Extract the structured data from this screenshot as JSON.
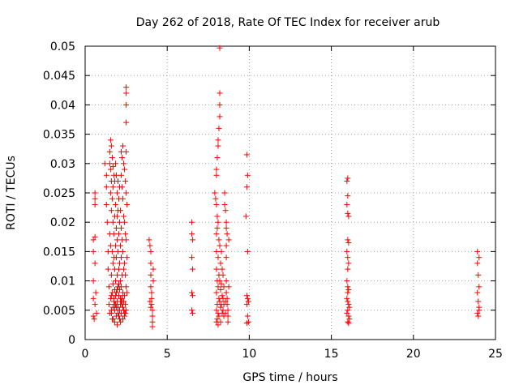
{
  "chart_data": {
    "type": "scatter",
    "title": "Day 262 of 2018, Rate Of TEC Index for receiver arub",
    "xlabel": "GPS time / hours",
    "ylabel": "ROTI / TECUs",
    "xlim": [
      0,
      25
    ],
    "ylim": [
      0,
      0.05
    ],
    "x_ticks": [
      0,
      5,
      10,
      15,
      20,
      25
    ],
    "x_tick_labels": [
      "0",
      "5",
      "10",
      "15",
      "20",
      "25"
    ],
    "y_ticks": [
      0,
      0.005,
      0.01,
      0.015,
      0.02,
      0.025,
      0.03,
      0.035,
      0.04,
      0.045,
      0.05
    ],
    "y_tick_labels": [
      "0",
      "0.005",
      "0.01",
      "0.015",
      "0.02",
      "0.025",
      "0.03",
      "0.035",
      "0.04",
      "0.045",
      "0.05"
    ],
    "grid": true,
    "marker": "+",
    "color": "#ff0000",
    "series": [
      {
        "name": "ROTI",
        "points": [
          [
            0.5,
            0.017
          ],
          [
            0.5,
            0.015
          ],
          [
            0.5,
            0.01
          ],
          [
            0.5,
            0.007
          ],
          [
            0.5,
            0.004
          ],
          [
            0.55,
            0.0035
          ],
          [
            0.6,
            0.006
          ],
          [
            0.6,
            0.025
          ],
          [
            0.6,
            0.024
          ],
          [
            0.6,
            0.023
          ],
          [
            0.6,
            0.0175
          ],
          [
            0.6,
            0.013
          ],
          [
            0.65,
            0.008
          ],
          [
            0.7,
            0.0045
          ],
          [
            1.2,
            0.03
          ],
          [
            1.3,
            0.028
          ],
          [
            1.3,
            0.026
          ],
          [
            1.3,
            0.023
          ],
          [
            1.35,
            0.02
          ],
          [
            1.4,
            0.015
          ],
          [
            1.4,
            0.012
          ],
          [
            1.45,
            0.009
          ],
          [
            1.45,
            0.006
          ],
          [
            1.5,
            0.032
          ],
          [
            1.5,
            0.03
          ],
          [
            1.5,
            0.018
          ],
          [
            1.55,
            0.034
          ],
          [
            1.55,
            0.029
          ],
          [
            1.55,
            0.025
          ],
          [
            1.55,
            0.016
          ],
          [
            1.6,
            0.033
          ],
          [
            1.6,
            0.027
          ],
          [
            1.6,
            0.022
          ],
          [
            1.6,
            0.011
          ],
          [
            1.6,
            0.0075
          ],
          [
            1.6,
            0.0045
          ],
          [
            1.65,
            0.031
          ],
          [
            1.65,
            0.024
          ],
          [
            1.65,
            0.015
          ],
          [
            1.65,
            0.0035
          ],
          [
            1.7,
            0.0295
          ],
          [
            1.7,
            0.026
          ],
          [
            1.7,
            0.02
          ],
          [
            1.7,
            0.013
          ],
          [
            1.7,
            0.0095
          ],
          [
            1.7,
            0.0055
          ],
          [
            1.75,
            0.028
          ],
          [
            1.75,
            0.018
          ],
          [
            1.75,
            0.014
          ],
          [
            1.75,
            0.007
          ],
          [
            1.8,
            0.027
          ],
          [
            1.8,
            0.021
          ],
          [
            1.8,
            0.012
          ],
          [
            1.8,
            0.0085
          ],
          [
            1.8,
            0.005
          ],
          [
            1.8,
            0.003
          ],
          [
            1.85,
            0.03
          ],
          [
            1.85,
            0.023
          ],
          [
            1.85,
            0.016
          ],
          [
            1.85,
            0.01
          ],
          [
            1.85,
            0.006
          ],
          [
            1.9,
            0.028
          ],
          [
            1.9,
            0.019
          ],
          [
            1.9,
            0.014
          ],
          [
            1.9,
            0.008
          ],
          [
            1.9,
            0.004
          ],
          [
            1.95,
            0.025
          ],
          [
            1.95,
            0.021
          ],
          [
            1.95,
            0.017
          ],
          [
            1.95,
            0.011
          ],
          [
            1.95,
            0.0065
          ],
          [
            1.95,
            0.0025
          ],
          [
            2.0,
            0.027
          ],
          [
            2.0,
            0.022
          ],
          [
            2.0,
            0.015
          ],
          [
            2.0,
            0.009
          ],
          [
            2.0,
            0.0055
          ],
          [
            2.05,
            0.024
          ],
          [
            2.05,
            0.018
          ],
          [
            2.05,
            0.012
          ],
          [
            2.05,
            0.0075
          ],
          [
            2.05,
            0.004
          ],
          [
            2.1,
            0.026
          ],
          [
            2.1,
            0.02
          ],
          [
            2.1,
            0.013
          ],
          [
            2.1,
            0.0085
          ],
          [
            2.1,
            0.005
          ],
          [
            2.15,
            0.022
          ],
          [
            2.15,
            0.016
          ],
          [
            2.15,
            0.01
          ],
          [
            2.15,
            0.006
          ],
          [
            2.15,
            0.003
          ],
          [
            2.2,
            0.032
          ],
          [
            2.2,
            0.028
          ],
          [
            2.2,
            0.019
          ],
          [
            2.2,
            0.014
          ],
          [
            2.2,
            0.009
          ],
          [
            2.2,
            0.0045
          ],
          [
            2.25,
            0.031
          ],
          [
            2.25,
            0.026
          ],
          [
            2.25,
            0.017
          ],
          [
            2.25,
            0.011
          ],
          [
            2.25,
            0.007
          ],
          [
            2.3,
            0.033
          ],
          [
            2.3,
            0.024
          ],
          [
            2.3,
            0.015
          ],
          [
            2.3,
            0.008
          ],
          [
            2.3,
            0.0035
          ],
          [
            2.35,
            0.03
          ],
          [
            2.35,
            0.021
          ],
          [
            2.35,
            0.012
          ],
          [
            2.35,
            0.0065
          ],
          [
            2.4,
            0.029
          ],
          [
            2.4,
            0.02
          ],
          [
            2.4,
            0.013
          ],
          [
            2.4,
            0.0075
          ],
          [
            2.4,
            0.0045
          ],
          [
            2.45,
            0.027
          ],
          [
            2.45,
            0.018
          ],
          [
            2.45,
            0.011
          ],
          [
            2.45,
            0.006
          ],
          [
            2.5,
            0.043
          ],
          [
            2.5,
            0.042
          ],
          [
            2.5,
            0.04
          ],
          [
            2.5,
            0.037
          ],
          [
            2.5,
            0.032
          ],
          [
            2.5,
            0.025
          ],
          [
            2.5,
            0.017
          ],
          [
            2.5,
            0.009
          ],
          [
            2.5,
            0.005
          ],
          [
            2.55,
            0.023
          ],
          [
            2.55,
            0.014
          ],
          [
            2.55,
            0.008
          ],
          [
            1.5,
            0.0045
          ],
          [
            1.6,
            0.005
          ],
          [
            1.7,
            0.0035
          ],
          [
            1.8,
            0.006
          ],
          [
            1.9,
            0.0055
          ],
          [
            2.0,
            0.0045
          ],
          [
            2.1,
            0.0035
          ],
          [
            2.2,
            0.0065
          ],
          [
            2.3,
            0.0055
          ],
          [
            2.4,
            0.004
          ],
          [
            1.55,
            0.007
          ],
          [
            1.65,
            0.008
          ],
          [
            1.75,
            0.0065
          ],
          [
            1.85,
            0.0075
          ],
          [
            1.95,
            0.0085
          ],
          [
            2.05,
            0.0095
          ],
          [
            2.15,
            0.007
          ],
          [
            2.25,
            0.006
          ],
          [
            2.35,
            0.005
          ],
          [
            2.45,
            0.0045
          ],
          [
            3.9,
            0.017
          ],
          [
            3.95,
            0.016
          ],
          [
            4.0,
            0.015
          ],
          [
            4.0,
            0.013
          ],
          [
            4.0,
            0.011
          ],
          [
            4.0,
            0.009
          ],
          [
            4.05,
            0.008
          ],
          [
            4.05,
            0.007
          ],
          [
            4.05,
            0.006
          ],
          [
            4.1,
            0.005
          ],
          [
            4.1,
            0.004
          ],
          [
            4.1,
            0.003
          ],
          [
            4.1,
            0.0022
          ],
          [
            4.15,
            0.012
          ],
          [
            4.15,
            0.01
          ],
          [
            3.95,
            0.0065
          ],
          [
            4.0,
            0.0055
          ],
          [
            6.5,
            0.02
          ],
          [
            6.5,
            0.018
          ],
          [
            6.55,
            0.017
          ],
          [
            6.5,
            0.014
          ],
          [
            6.55,
            0.012
          ],
          [
            6.5,
            0.008
          ],
          [
            6.55,
            0.0075
          ],
          [
            6.5,
            0.005
          ],
          [
            6.55,
            0.0045
          ],
          [
            7.9,
            0.025
          ],
          [
            7.95,
            0.024
          ],
          [
            8.0,
            0.029
          ],
          [
            8.0,
            0.028
          ],
          [
            8.0,
            0.023
          ],
          [
            8.0,
            0.018
          ],
          [
            8.0,
            0.015
          ],
          [
            8.0,
            0.012
          ],
          [
            8.0,
            0.008
          ],
          [
            8.0,
            0.005
          ],
          [
            8.0,
            0.003
          ],
          [
            8.05,
            0.031
          ],
          [
            8.05,
            0.021
          ],
          [
            8.05,
            0.019
          ],
          [
            8.05,
            0.01
          ],
          [
            8.05,
            0.006
          ],
          [
            8.05,
            0.0035
          ],
          [
            8.1,
            0.034
          ],
          [
            8.1,
            0.033
          ],
          [
            8.1,
            0.02
          ],
          [
            8.1,
            0.014
          ],
          [
            8.1,
            0.009
          ],
          [
            8.1,
            0.0045
          ],
          [
            8.1,
            0.0025
          ],
          [
            8.15,
            0.036
          ],
          [
            8.15,
            0.017
          ],
          [
            8.15,
            0.011
          ],
          [
            8.15,
            0.007
          ],
          [
            8.15,
            0.004
          ],
          [
            8.2,
            0.0497
          ],
          [
            8.2,
            0.042
          ],
          [
            8.2,
            0.04
          ],
          [
            8.2,
            0.038
          ],
          [
            8.2,
            0.016
          ],
          [
            8.2,
            0.01
          ],
          [
            8.2,
            0.0065
          ],
          [
            8.25,
            0.013
          ],
          [
            8.25,
            0.0085
          ],
          [
            8.25,
            0.0055
          ],
          [
            8.25,
            0.003
          ],
          [
            8.3,
            0.015
          ],
          [
            8.3,
            0.0095
          ],
          [
            8.3,
            0.006
          ],
          [
            8.35,
            0.012
          ],
          [
            8.35,
            0.0075
          ],
          [
            8.35,
            0.0045
          ],
          [
            8.4,
            0.011
          ],
          [
            8.4,
            0.007
          ],
          [
            8.4,
            0.005
          ],
          [
            8.45,
            0.009
          ],
          [
            8.45,
            0.006
          ],
          [
            8.45,
            0.004
          ],
          [
            8.5,
            0.025
          ],
          [
            8.5,
            0.023
          ],
          [
            8.55,
            0.022
          ],
          [
            8.6,
            0.02
          ],
          [
            8.6,
            0.019
          ],
          [
            8.65,
            0.018
          ],
          [
            8.6,
            0.016
          ],
          [
            8.6,
            0.014
          ],
          [
            8.6,
            0.01
          ],
          [
            8.6,
            0.008
          ],
          [
            8.65,
            0.007
          ],
          [
            8.65,
            0.006
          ],
          [
            8.7,
            0.005
          ],
          [
            8.7,
            0.004
          ],
          [
            8.7,
            0.003
          ],
          [
            8.75,
            0.017
          ],
          [
            8.75,
            0.009
          ],
          [
            8.55,
            0.0065
          ],
          [
            8.55,
            0.0045
          ],
          [
            9.85,
            0.0315
          ],
          [
            9.9,
            0.028
          ],
          [
            9.85,
            0.026
          ],
          [
            9.8,
            0.021
          ],
          [
            9.9,
            0.015
          ],
          [
            9.85,
            0.0075
          ],
          [
            9.9,
            0.007
          ],
          [
            9.95,
            0.0065
          ],
          [
            9.85,
            0.006
          ],
          [
            9.9,
            0.004
          ],
          [
            9.95,
            0.003
          ],
          [
            9.85,
            0.0028
          ],
          [
            15.95,
            0.027
          ],
          [
            16.0,
            0.0275
          ],
          [
            16.0,
            0.0245
          ],
          [
            15.95,
            0.023
          ],
          [
            16.0,
            0.0215
          ],
          [
            16.05,
            0.021
          ],
          [
            16.0,
            0.017
          ],
          [
            16.05,
            0.0165
          ],
          [
            15.95,
            0.015
          ],
          [
            16.0,
            0.014
          ],
          [
            16.05,
            0.013
          ],
          [
            16.0,
            0.012
          ],
          [
            15.95,
            0.01
          ],
          [
            16.0,
            0.009
          ],
          [
            16.05,
            0.0085
          ],
          [
            16.0,
            0.008
          ],
          [
            15.95,
            0.007
          ],
          [
            16.0,
            0.0065
          ],
          [
            16.05,
            0.006
          ],
          [
            16.1,
            0.0055
          ],
          [
            16.0,
            0.005
          ],
          [
            15.95,
            0.0045
          ],
          [
            16.05,
            0.004
          ],
          [
            16.1,
            0.0035
          ],
          [
            16.0,
            0.003
          ],
          [
            16.05,
            0.0028
          ],
          [
            23.9,
            0.015
          ],
          [
            24.0,
            0.014
          ],
          [
            23.9,
            0.013
          ],
          [
            23.95,
            0.011
          ],
          [
            24.0,
            0.009
          ],
          [
            23.9,
            0.008
          ],
          [
            23.95,
            0.0065
          ],
          [
            24.0,
            0.005
          ],
          [
            23.9,
            0.0045
          ],
          [
            23.95,
            0.004
          ],
          [
            24.0,
            0.0055
          ]
        ]
      }
    ]
  }
}
